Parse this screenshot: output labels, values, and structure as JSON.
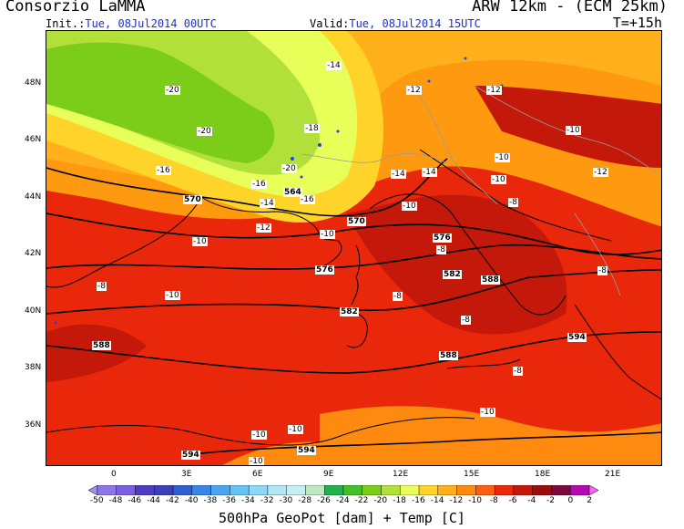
{
  "header": {
    "org": "Consorzio LaMMA",
    "model": "ARW 12km - (ECM 25km)",
    "init_label": "Init.:",
    "init_value": "Tue, 08Jul2014 00UTC",
    "valid_label": "Valid:",
    "valid_value": "Tue, 08Jul2014 15UTC",
    "step": "T=+15h"
  },
  "axes": {
    "lat_labels": [
      "48N",
      "46N",
      "44N",
      "42N",
      "40N",
      "38N",
      "36N"
    ],
    "lon_labels": [
      "0",
      "3E",
      "6E",
      "9E",
      "12E",
      "15E",
      "18E",
      "21E"
    ]
  },
  "colors": {
    "temp_cold_green": "#7ccd1a",
    "temp_yellow": "#e8ff5a",
    "temp_orange": "#ff9a10",
    "temp_red": "#e8270b",
    "temp_darkred": "#c4180a",
    "coast": "#000000",
    "border": "#9a9a9a",
    "lake": "#2040ff"
  },
  "temp_labels": [
    "-20",
    "-20",
    "-18",
    "-20",
    "-16",
    "-16",
    "-16",
    "-14",
    "-14",
    "-14",
    "-12",
    "-12",
    "-14",
    "-12",
    "-10",
    "-10",
    "-10",
    "-12",
    "-10",
    "-8",
    "-10",
    "-8",
    "-10",
    "-8",
    "-8",
    "-8",
    "-8",
    "-8",
    "-10",
    "-10",
    "-10",
    "-10",
    "-10"
  ],
  "geopot_labels": [
    "570",
    "564",
    "570",
    "576",
    "576",
    "582",
    "582",
    "588",
    "588",
    "588",
    "594",
    "594",
    "594"
  ],
  "colorbar": {
    "ticks": [
      "-50",
      "-48",
      "-46",
      "-44",
      "-42",
      "-40",
      "-38",
      "-36",
      "-34",
      "-32",
      "-30",
      "-28",
      "-26",
      "-24",
      "-22",
      "-20",
      "-18",
      "-16",
      "-14",
      "-12",
      "-10",
      "-8",
      "-6",
      "-4",
      "-2",
      "0",
      "2"
    ],
    "colors": [
      "#9f8fef",
      "#8c76e8",
      "#7a5fe0",
      "#4e3dc3",
      "#3b3fb8",
      "#2f5fd5",
      "#3b84e8",
      "#4ba5f0",
      "#66c2f5",
      "#8dd7f7",
      "#b0e6f6",
      "#c7eef0",
      "#bfe8c0",
      "#22b14c",
      "#46c026",
      "#7ccd1a",
      "#b1e03a",
      "#e8ff5a",
      "#ffd42a",
      "#ffb01a",
      "#ff8a10",
      "#ff5f10",
      "#e8270b",
      "#c4180a",
      "#9a0d0d",
      "#7a0a3a",
      "#b30ab3",
      "#ff60ff"
    ]
  },
  "footer": "500hPa GeoPot [dam] + Temp [C]"
}
